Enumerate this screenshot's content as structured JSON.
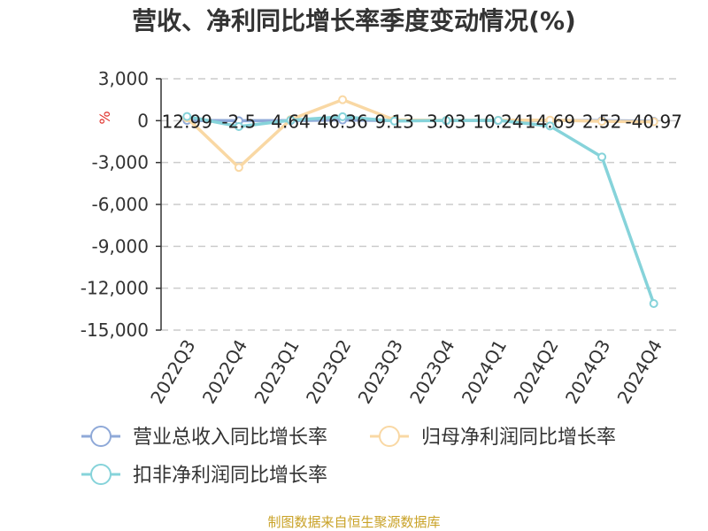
{
  "chart_data": {
    "type": "line",
    "title": "营收、净利同比增长率季度变动情况(%)",
    "y_unit": "%",
    "categories": [
      "2022Q3",
      "2022Q4",
      "2023Q1",
      "2023Q2",
      "2023Q3",
      "2023Q4",
      "2024Q1",
      "2024Q2",
      "2024Q3",
      "2024Q4"
    ],
    "ylim": [
      -15000,
      3000
    ],
    "yticks": [
      3000,
      0,
      -3000,
      -6000,
      -9000,
      -12000,
      -15000
    ],
    "ytick_labels": [
      "3,000",
      "0",
      "-3,000",
      "-6,000",
      "-9,000",
      "-12,000",
      "-15,000"
    ],
    "grid": true,
    "legend_position": "bottom",
    "series": [
      {
        "name": "营业总收入同比增长率",
        "color": "#8fa9d8",
        "values": [
          12.99,
          -2.5,
          4.64,
          46.36,
          9.13,
          3.03,
          10.24,
          14.69,
          2.52,
          -40.97
        ],
        "data_labels": [
          "12.99",
          "-2.5",
          "4.64",
          "46.36",
          "9.13",
          "3.03",
          "10.24",
          "14.69",
          "2.52",
          "-40.97"
        ]
      },
      {
        "name": "归母净利润同比增长率",
        "color": "#f9d8a4",
        "values": [
          200,
          -3350,
          80,
          1500,
          50,
          20,
          30,
          40,
          -50,
          -80
        ]
      },
      {
        "name": "扣非净利润同比增长率",
        "color": "#86d3da",
        "values": [
          300,
          -420,
          30,
          280,
          -30,
          10,
          20,
          -380,
          -2600,
          -13100
        ]
      }
    ],
    "source": "制图数据来自恒生聚源数据库"
  }
}
